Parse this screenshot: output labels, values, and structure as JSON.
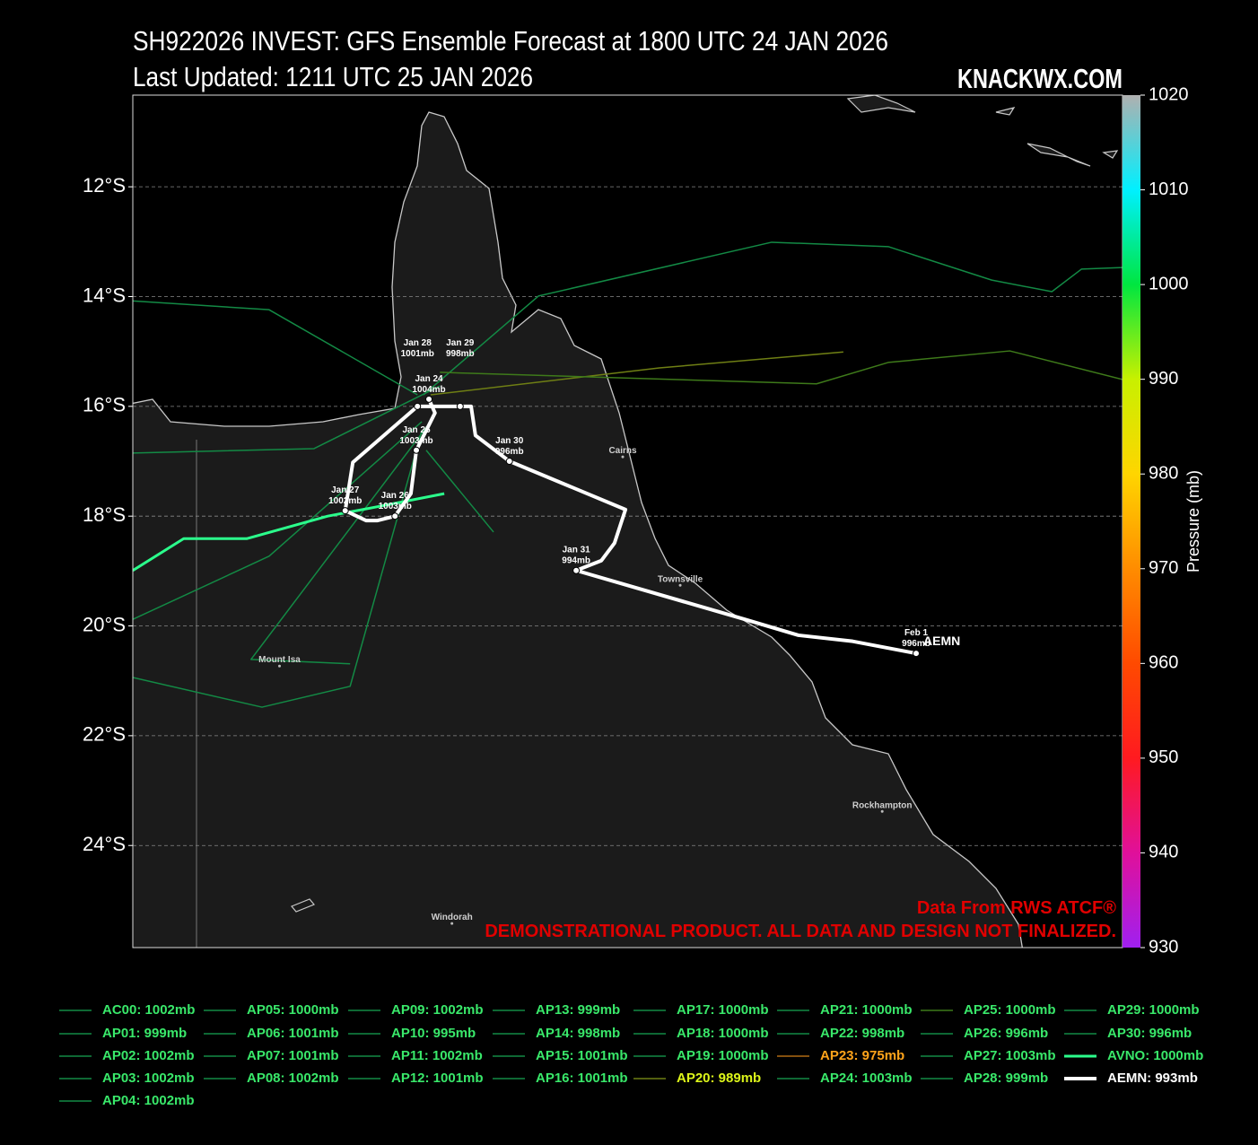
{
  "chart_data": {
    "type": "track",
    "title": "SH922026 INVEST: GFS Ensemble Forecast at 1800 UTC 24 JAN 2026",
    "subtitle": "Last Updated: 1211 UTC 25 JAN 2026",
    "brand": "KNACKWX.COM",
    "credit": "Data From RWS ATCF®",
    "disclaimer": "DEMONSTRATIONAL PRODUCT. ALL DATA AND DESIGN NOT FINALIZED.",
    "xlim": [
      136.82,
      154.9
    ],
    "ylim": [
      -25.86,
      -10.33
    ],
    "yticks": [
      {
        "value": -12,
        "label": "12°S"
      },
      {
        "value": -14,
        "label": "14°S"
      },
      {
        "value": -16,
        "label": "16°S"
      },
      {
        "value": -18,
        "label": "18°S"
      },
      {
        "value": -20,
        "label": "20°S"
      },
      {
        "value": -22,
        "label": "22°S"
      },
      {
        "value": -24,
        "label": "24°S"
      }
    ],
    "grid": true,
    "colorbar": {
      "label": "Pressure (mb)",
      "lim": [
        930,
        1020
      ],
      "ticks": [
        930,
        940,
        950,
        960,
        970,
        980,
        990,
        1000,
        1010,
        1020
      ],
      "colors": [
        "#a020f0",
        "#e0109a",
        "#ff1a20",
        "#ff4a00",
        "#ff8c00",
        "#ffd500",
        "#c8f000",
        "#00e640",
        "#00f0ff",
        "#b0b0b0"
      ]
    },
    "cities": [
      {
        "name": "Cairns",
        "x": 145.77,
        "y": -16.92
      },
      {
        "name": "Townsville",
        "x": 146.82,
        "y": -19.26
      },
      {
        "name": "Mount Isa",
        "x": 139.5,
        "y": -20.73
      },
      {
        "name": "Rockhampton",
        "x": 150.51,
        "y": -23.38
      },
      {
        "name": "Windorah",
        "x": 142.65,
        "y": -25.42
      }
    ],
    "series": [
      {
        "name": "AC00: 1002mb",
        "color": "#138a45",
        "text_color": "#39e86a"
      },
      {
        "name": "AP01: 999mb",
        "color": "#138a45",
        "text_color": "#39e86a",
        "x": [
          142.1,
          139.31,
          136.82
        ],
        "y": [
          -16.28,
          -18.73,
          -19.88
        ]
      },
      {
        "name": "AP02: 1002mb",
        "color": "#138a45",
        "text_color": "#39e86a"
      },
      {
        "name": "AP03: 1002mb",
        "color": "#138a45",
        "text_color": "#39e86a",
        "x": [
          142.1,
          140.79,
          139.18,
          136.82
        ],
        "y": [
          -16.44,
          -21.1,
          -21.48,
          -20.94
        ]
      },
      {
        "name": "AP04: 1002mb",
        "color": "#138a45",
        "text_color": "#39e86a"
      },
      {
        "name": "AP05: 1000mb",
        "color": "#138a45",
        "text_color": "#39e86a",
        "x": [
          142.26,
          138.98,
          140.79
        ],
        "y": [
          -16.28,
          -20.61,
          -20.69
        ]
      },
      {
        "name": "AP06: 1001mb",
        "color": "#138a45",
        "text_color": "#39e86a"
      },
      {
        "name": "AP07: 1001mb",
        "color": "#138a45",
        "text_color": "#39e86a",
        "x": [
          142.02,
          139.31,
          136.82
        ],
        "y": [
          -15.79,
          -14.24,
          -14.08
        ]
      },
      {
        "name": "AP08: 1002mb",
        "color": "#138a45",
        "text_color": "#39e86a"
      },
      {
        "name": "AP09: 1002mb",
        "color": "#138a45",
        "text_color": "#39e86a"
      },
      {
        "name": "AP10: 995mb",
        "color": "#138a45",
        "text_color": "#39e86a",
        "x": [
          142.43,
          140.13,
          136.82
        ],
        "y": [
          -15.63,
          -16.77,
          -16.85
        ]
      },
      {
        "name": "AP11: 1002mb",
        "color": "#138a45",
        "text_color": "#39e86a"
      },
      {
        "name": "AP12: 1001mb",
        "color": "#138a45",
        "text_color": "#39e86a"
      },
      {
        "name": "AP13: 999mb",
        "color": "#138a45",
        "text_color": "#39e86a"
      },
      {
        "name": "AP14: 998mb",
        "color": "#138a45",
        "text_color": "#39e86a"
      },
      {
        "name": "AP15: 1001mb",
        "color": "#138a45",
        "text_color": "#39e86a"
      },
      {
        "name": "AP16: 1001mb",
        "color": "#138a45",
        "text_color": "#39e86a"
      },
      {
        "name": "AP17: 1000mb",
        "color": "#138a45",
        "text_color": "#39e86a"
      },
      {
        "name": "AP18: 1000mb",
        "color": "#138a45",
        "text_color": "#39e86a"
      },
      {
        "name": "AP19: 1000mb",
        "color": "#138a45",
        "text_color": "#39e86a"
      },
      {
        "name": "AP20: 989mb",
        "color": "#6f7f14",
        "text_color": "#dcf51a",
        "x": [
          142.26,
          146.44,
          149.8
        ],
        "y": [
          -15.79,
          -15.3,
          -15.01
        ]
      },
      {
        "name": "AP21: 1000mb",
        "color": "#138a45",
        "text_color": "#39e86a",
        "x": [
          142.13,
          144.23,
          148.49,
          150.62,
          152.51,
          153.61,
          154.15,
          154.9
        ],
        "y": [
          -15.79,
          -13.99,
          -13.01,
          -13.09,
          -13.7,
          -13.91,
          -13.5,
          -13.47
        ]
      },
      {
        "name": "AP22: 998mb",
        "color": "#138a45",
        "text_color": "#39e86a"
      },
      {
        "name": "AP23: 975mb",
        "color": "#b06a12",
        "text_color": "#ffa41a"
      },
      {
        "name": "AP24: 1003mb",
        "color": "#138a45",
        "text_color": "#39e86a"
      },
      {
        "name": "AP25: 1000mb",
        "color": "#3e7a1a",
        "text_color": "#39e86a",
        "x": [
          142.43,
          149.31,
          150.62,
          152.84,
          154.9
        ],
        "y": [
          -15.38,
          -15.59,
          -15.2,
          -14.99,
          -15.51
        ]
      },
      {
        "name": "AP26: 996mb",
        "color": "#138a45",
        "text_color": "#39e86a"
      },
      {
        "name": "AP27: 1003mb",
        "color": "#138a45",
        "text_color": "#39e86a"
      },
      {
        "name": "AP28: 999mb",
        "color": "#138a45",
        "text_color": "#39e86a",
        "x": [
          142.18,
          143.41
        ],
        "y": [
          -16.8,
          -18.29
        ]
      },
      {
        "name": "AP29: 1000mb",
        "color": "#138a45",
        "text_color": "#39e86a"
      },
      {
        "name": "AP30: 996mb",
        "color": "#138a45",
        "text_color": "#39e86a"
      },
      {
        "name": "AVNO: 1000mb",
        "color": "#2bff8c",
        "text_color": "#39e86a",
        "x": [
          136.82,
          137.75,
          138.9,
          140.38,
          141.28,
          142.51
        ],
        "y": [
          -18.99,
          -18.41,
          -18.41,
          -18.0,
          -17.83,
          -17.59
        ]
      },
      {
        "name": "AEMN: 993mb",
        "color": "#ffffff",
        "text_color": "#ffffff",
        "track_label": "AEMN",
        "x": [
          142.23,
          142.34,
          142.0,
          141.9,
          141.61,
          141.29,
          141.08,
          140.7,
          140.84,
          142.02,
          142.8,
          143.0,
          143.08,
          143.7,
          145.82,
          145.62,
          145.38,
          144.92,
          148.0,
          148.98,
          149.97,
          151.13
        ],
        "y": [
          -15.87,
          -16.12,
          -16.8,
          -17.59,
          -18.0,
          -18.08,
          -18.08,
          -17.9,
          -17.02,
          -16.0,
          -16.0,
          -16.0,
          -16.53,
          -17.0,
          -17.88,
          -18.49,
          -18.81,
          -18.99,
          -19.88,
          -20.17,
          -20.28,
          -20.5
        ],
        "points": {
          "dates": [
            "Jan 24",
            "Jan 25",
            "Jan 26",
            "Jan 27",
            "Jan 28",
            "Jan 29",
            "Jan 30",
            "Jan 31",
            "Feb 1"
          ],
          "x": [
            142.23,
            142.0,
            141.61,
            140.7,
            142.02,
            142.8,
            143.7,
            144.92,
            151.13
          ],
          "y": [
            -15.87,
            -16.8,
            -18.0,
            -17.9,
            -16.0,
            -16.0,
            -17.0,
            -18.99,
            -20.5
          ],
          "values": [
            1004,
            1003,
            1003,
            1002,
            1001,
            998,
            996,
            994,
            996
          ],
          "value_labels": [
            "1004mb",
            "1003mb",
            "1003mb",
            "1002mb",
            "1001mb",
            "998mb",
            "996mb",
            "994mb",
            "996mb"
          ]
        }
      }
    ]
  }
}
